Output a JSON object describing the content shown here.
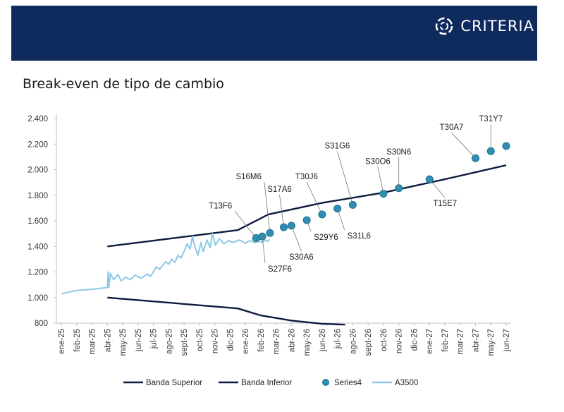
{
  "brand": {
    "name": "CRITERIA",
    "colors": {
      "banner": "#0f2a5c",
      "band": "#0d1b3e",
      "series4": "#2e8fb5",
      "a3500": "#8ec9e6"
    }
  },
  "chart_data": {
    "type": "line",
    "title": "Break-even de tipo de cambio",
    "categories": [
      "ene-25",
      "feb-25",
      "mar-25",
      "abr-25",
      "may-25",
      "jun-25",
      "jul-25",
      "ago-25",
      "sept-25",
      "oct-25",
      "nov-25",
      "dic-25",
      "ene-26",
      "feb-26",
      "mar-26",
      "abr-26",
      "may-26",
      "jun-26",
      "jul-26",
      "ago-26",
      "sept-26",
      "oct-26",
      "nov-26",
      "dic-26",
      "ene-27",
      "feb-27",
      "mar-27",
      "abr-27",
      "may-27",
      "jun-27"
    ],
    "ylim": [
      800,
      2400
    ],
    "yticks": [
      800,
      1000,
      1200,
      1400,
      1600,
      1800,
      2000,
      2200,
      2400
    ],
    "ytick_labels": [
      "800",
      "1.000",
      "1.200",
      "1.400",
      "1.600",
      "1.800",
      "2.000",
      "2.200",
      "2.400"
    ],
    "series": [
      {
        "name": "Banda Superior",
        "kind": "line",
        "color": "#0d1b3e",
        "points": [
          [
            3,
            1400
          ],
          [
            11.5,
            1527
          ],
          [
            13.5,
            1650
          ],
          [
            17,
            1740
          ],
          [
            21,
            1820
          ],
          [
            25,
            1925
          ],
          [
            29,
            2035
          ]
        ]
      },
      {
        "name": "Banda Inferior",
        "kind": "line",
        "color": "#0d1b3e",
        "points": [
          [
            3,
            1000
          ],
          [
            11.5,
            915
          ],
          [
            13,
            860
          ],
          [
            15,
            820
          ],
          [
            17,
            795
          ],
          [
            18.5,
            788
          ]
        ]
      },
      {
        "name": "Series4",
        "kind": "scatter",
        "color": "#2e8fb5",
        "points": [
          {
            "label": "T13F6",
            "x": 12.7,
            "y": 1465
          },
          {
            "label": "S27F6",
            "x": 13.1,
            "y": 1478
          },
          {
            "label": "S16M6",
            "x": 13.6,
            "y": 1505
          },
          {
            "label": "S17A6",
            "x": 14.5,
            "y": 1550
          },
          {
            "label": "S30A6",
            "x": 15,
            "y": 1562
          },
          {
            "label": "S29Y6",
            "x": 16,
            "y": 1605
          },
          {
            "label": "T30J6",
            "x": 17,
            "y": 1650
          },
          {
            "label": "S31L6",
            "x": 18,
            "y": 1695
          },
          {
            "label": "S31G6",
            "x": 19,
            "y": 1725
          },
          {
            "label": "S30O6",
            "x": 21,
            "y": 1812
          },
          {
            "label": "S30N6",
            "x": 22,
            "y": 1855
          },
          {
            "label": "T15E7",
            "x": 24,
            "y": 1925
          },
          {
            "label": "T30A7",
            "x": 27,
            "y": 2090
          },
          {
            "label": "T31Y7",
            "x": 28,
            "y": 2145
          },
          {
            "label": "",
            "x": 29,
            "y": 2185
          }
        ]
      },
      {
        "name": "A3500",
        "kind": "line",
        "color": "#8ec9e6",
        "points": [
          [
            0,
            1030
          ],
          [
            1,
            1055
          ],
          [
            2,
            1065
          ],
          [
            3,
            1078
          ],
          [
            3.05,
            1200
          ],
          [
            3.1,
            1080
          ],
          [
            3.2,
            1190
          ],
          [
            3.4,
            1140
          ],
          [
            3.7,
            1180
          ],
          [
            3.9,
            1130
          ],
          [
            4.2,
            1160
          ],
          [
            4.5,
            1140
          ],
          [
            4.8,
            1175
          ],
          [
            5.2,
            1150
          ],
          [
            5.6,
            1185
          ],
          [
            5.8,
            1165
          ],
          [
            6,
            1200
          ],
          [
            6.2,
            1240
          ],
          [
            6.4,
            1220
          ],
          [
            6.6,
            1250
          ],
          [
            6.8,
            1280
          ],
          [
            7,
            1260
          ],
          [
            7.2,
            1300
          ],
          [
            7.4,
            1275
          ],
          [
            7.6,
            1330
          ],
          [
            7.8,
            1310
          ],
          [
            8,
            1360
          ],
          [
            8.2,
            1420
          ],
          [
            8.4,
            1380
          ],
          [
            8.55,
            1480
          ],
          [
            8.7,
            1400
          ],
          [
            8.9,
            1330
          ],
          [
            9.1,
            1430
          ],
          [
            9.25,
            1360
          ],
          [
            9.5,
            1450
          ],
          [
            9.7,
            1390
          ],
          [
            9.85,
            1500
          ],
          [
            10.05,
            1410
          ],
          [
            10.3,
            1460
          ],
          [
            10.6,
            1420
          ],
          [
            10.9,
            1445
          ],
          [
            11.2,
            1430
          ],
          [
            11.6,
            1450
          ],
          [
            12,
            1425
          ],
          [
            12.3,
            1445
          ],
          [
            12.6,
            1430
          ],
          [
            12.9,
            1440
          ],
          [
            13.1,
            1432
          ],
          [
            13.3,
            1450
          ],
          [
            13.45,
            1438
          ],
          [
            13.6,
            1455
          ]
        ]
      }
    ],
    "labels_order": [
      "T13F6",
      "S27F6",
      "S16M6",
      "S17A6",
      "S30A6",
      "S29Y6",
      "T30J6",
      "S31L6",
      "S31G6",
      "S30O6",
      "S30N6",
      "T15E7",
      "T30A7",
      "T31Y7"
    ],
    "legend": {
      "position": "bottom",
      "items": [
        "Banda Superior",
        "Banda Inferior",
        "Series4",
        "A3500"
      ]
    }
  }
}
